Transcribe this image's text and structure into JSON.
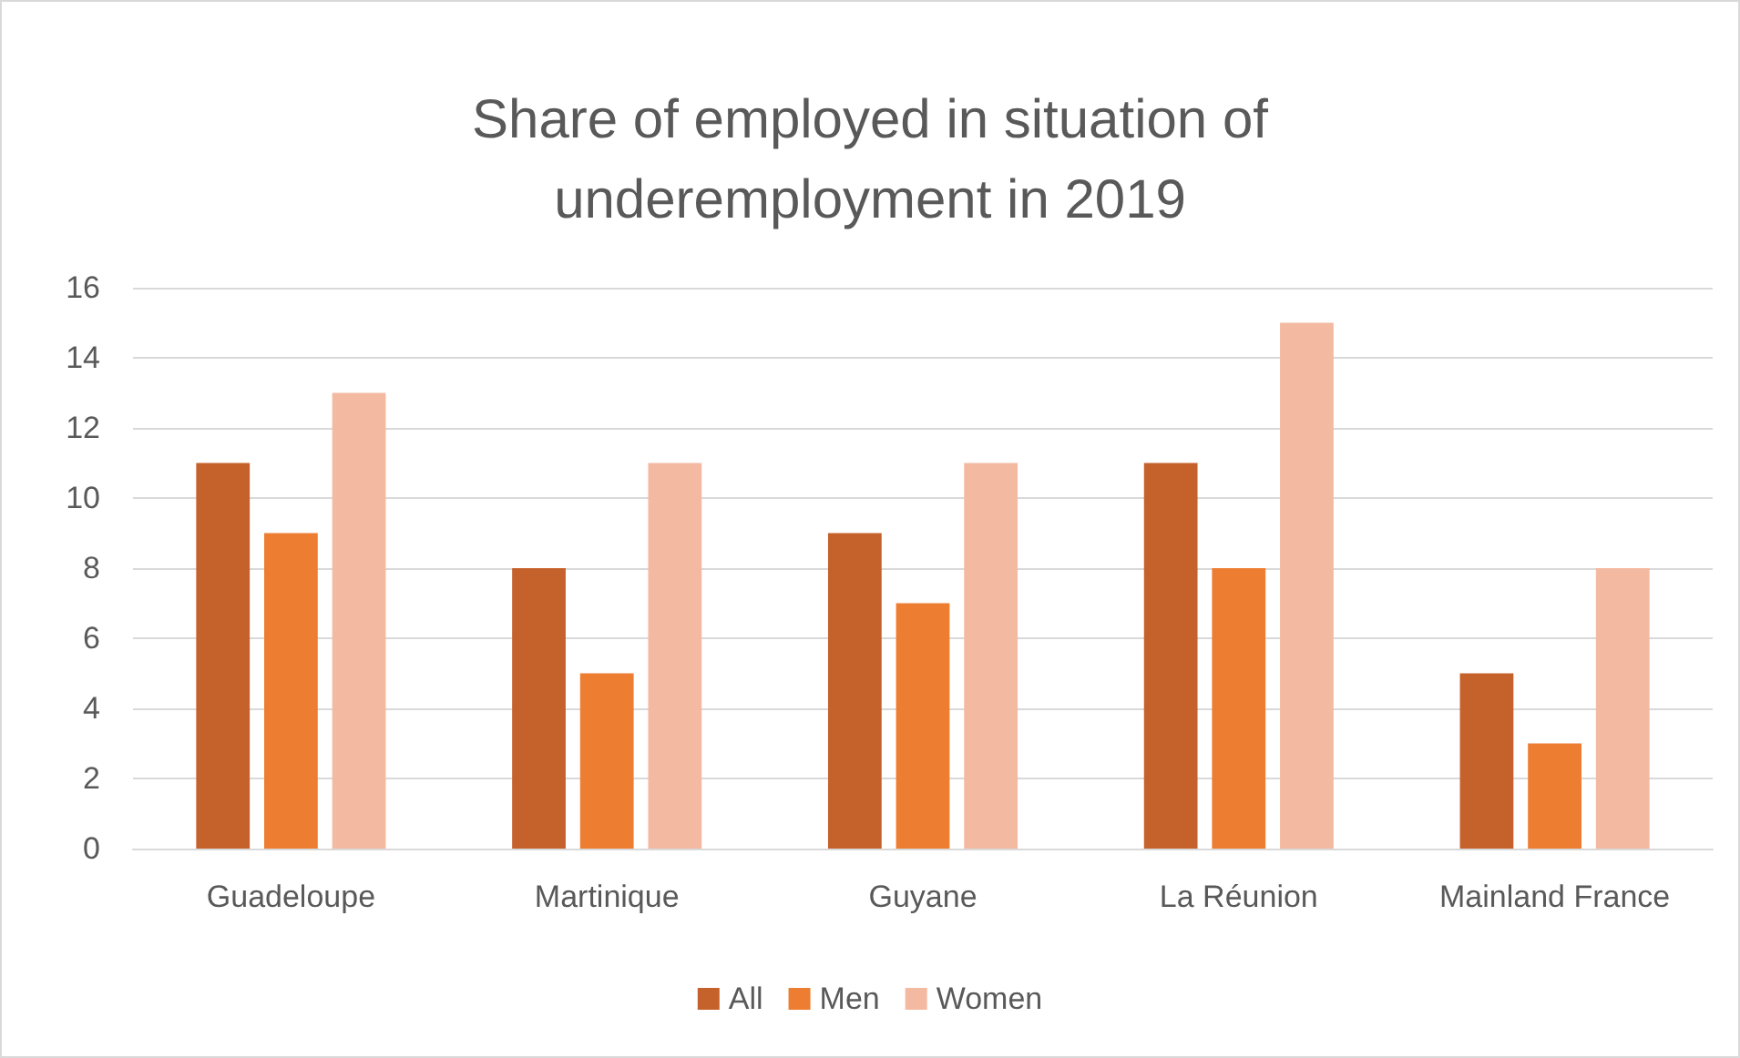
{
  "chart_data": {
    "type": "bar",
    "title": "Share of employed in situation of\nunderemployment in 2019",
    "categories": [
      "Guadeloupe",
      "Martinique",
      "Guyane",
      "La Réunion",
      "Mainland France"
    ],
    "series": [
      {
        "name": "All",
        "color": "#c5622b",
        "values": [
          11,
          8,
          9,
          11,
          5
        ]
      },
      {
        "name": "Men",
        "color": "#ed7d31",
        "values": [
          9,
          5,
          7,
          8,
          3
        ]
      },
      {
        "name": "Women",
        "color": "#f4b9a1",
        "values": [
          13,
          11,
          11,
          15,
          8
        ]
      }
    ],
    "ylim": [
      0,
      16
    ],
    "yticks": [
      0,
      2,
      4,
      6,
      8,
      10,
      12,
      14,
      16
    ],
    "grid": "y",
    "legend": "bottom"
  }
}
